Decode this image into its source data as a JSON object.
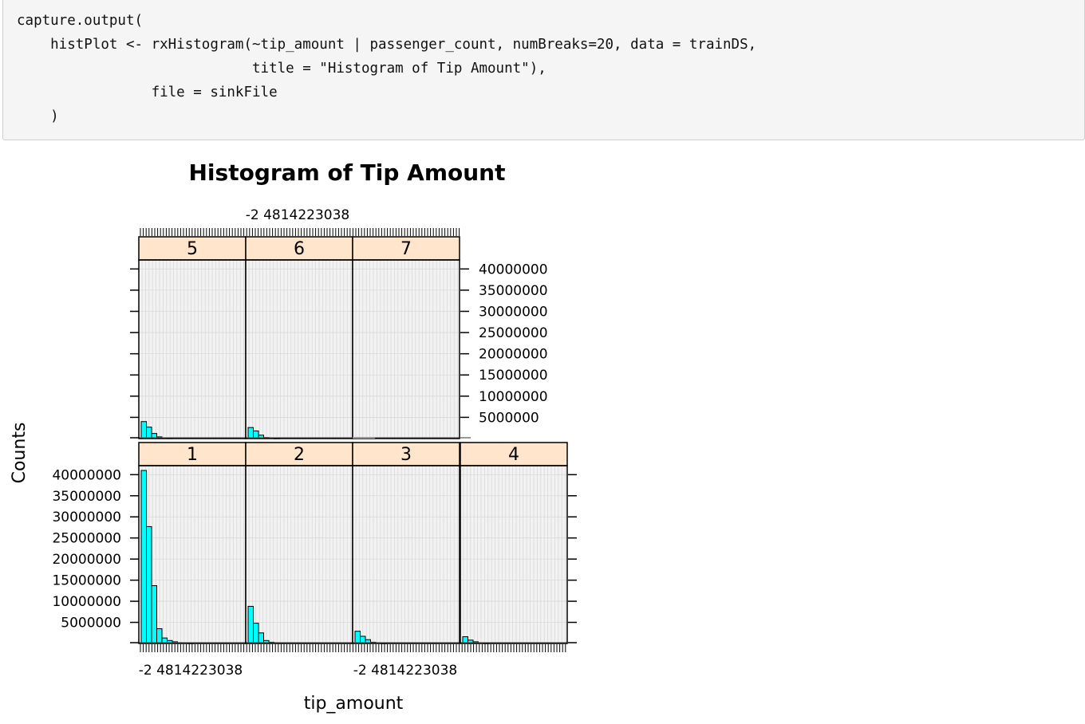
{
  "code": {
    "lines": [
      "capture.output(",
      "    histPlot <- rxHistogram(~tip_amount | passenger_count, numBreaks=20, data = trainDS,",
      "                            title = \"Histogram of Tip Amount\"),",
      "                file = sinkFile",
      "    )"
    ]
  },
  "chart_data": {
    "type": "bar",
    "title": "Histogram of Tip Amount",
    "xlabel": "tip_amount",
    "ylabel": "Counts",
    "ylim": [
      0,
      41000000
    ],
    "y_ticks": [
      "40000000",
      "35000000",
      "30000000",
      "25000000",
      "20000000",
      "15000000",
      "10000000",
      "5000000"
    ],
    "x_tick_label": "-2 4814223038",
    "panel_layout": "2 rows x 4 columns; bottom row 1-4, top row 5-7",
    "panels": [
      {
        "name": "1",
        "values": [
          41000000,
          27700000,
          13700000,
          3500000,
          1300000,
          700000,
          400000,
          200000,
          100000,
          50000
        ]
      },
      {
        "name": "2",
        "values": [
          8800000,
          4800000,
          2500000,
          700000,
          300000,
          150000,
          80000
        ]
      },
      {
        "name": "3",
        "values": [
          2900000,
          1700000,
          900000,
          300000,
          100000,
          50000
        ]
      },
      {
        "name": "4",
        "values": [
          1600000,
          800000,
          400000,
          100000,
          50000
        ]
      },
      {
        "name": "5",
        "values": [
          4000000,
          2700000,
          1200000,
          400000,
          150000,
          70000
        ]
      },
      {
        "name": "6",
        "values": [
          2600000,
          1800000,
          800000,
          250000,
          100000,
          50000
        ]
      },
      {
        "name": "7",
        "values": []
      }
    ]
  },
  "colors": {
    "bar_fill": "#00ffff",
    "strip_fill": "#ffe5cc",
    "panel_grid": "#d9d9d9",
    "code_background": "#f5f5f5"
  }
}
